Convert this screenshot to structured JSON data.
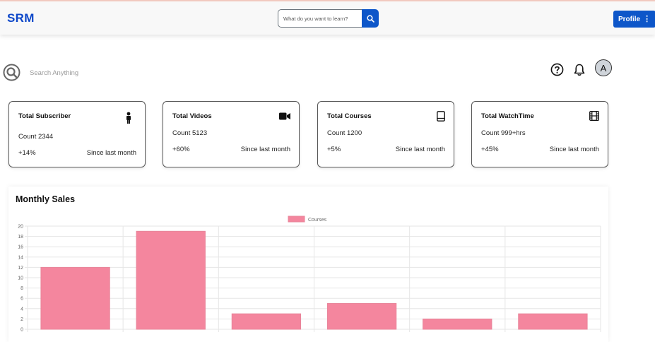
{
  "header": {
    "brand": "SRM",
    "search_placeholder": "What do you want to learn?",
    "profile_label": "Profile"
  },
  "subheader": {
    "search_placeholder": "Search Anything",
    "avatar_initial": "A"
  },
  "cards": [
    {
      "title": "Total Subscriber",
      "count": "Count 2344",
      "change": "+14%",
      "since": "Since last month",
      "icon": "person-icon"
    },
    {
      "title": "Total Videos",
      "count": "Count 5123",
      "change": "+60%",
      "since": "Since last month",
      "icon": "video-camera-icon"
    },
    {
      "title": "Total Courses",
      "count": "Count 1200",
      "change": "+5%",
      "since": "Since last month",
      "icon": "book-icon"
    },
    {
      "title": "Total WatchTime",
      "count": "Count 999+hrs",
      "change": "+45%",
      "since": "Since last month",
      "icon": "film-icon"
    }
  ],
  "sales": {
    "title": "Monthly Sales"
  },
  "chart_data": {
    "type": "bar",
    "title": "",
    "xlabel": "",
    "ylabel": "",
    "categories": [
      "",
      "",
      "",
      "",
      "",
      ""
    ],
    "series": [
      {
        "name": "Courses",
        "values": [
          12,
          19,
          3,
          5,
          2,
          3
        ]
      }
    ],
    "ylim": [
      0,
      20
    ],
    "yticks": [
      "0",
      "2",
      "4",
      "6",
      "8",
      "10",
      "12",
      "14",
      "16",
      "18",
      "20"
    ],
    "grid": true,
    "legend": "top-center",
    "colors": {
      "bar_fill": "#f4869e",
      "bar_stroke": "#e8859a"
    }
  },
  "colors": {
    "brand": "#0d47c9",
    "primary": "#0d56c9"
  }
}
